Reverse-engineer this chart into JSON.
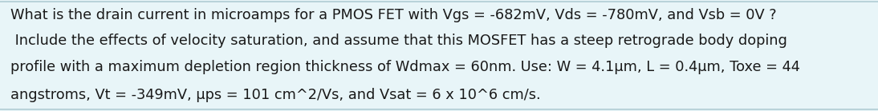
{
  "lines": [
    "What is the drain current in microamps for a PMOS FET with Vgs = -682mV, Vds = -780mV, and Vsb = 0V ?",
    " Include the effects of velocity saturation, and assume that this MOSFET has a steep retrograde body doping",
    "profile with a maximum depletion region thickness of Wdmax = 60nm. Use: W = 4.1μm, L = 0.4μm, Toxe = 44",
    "angstroms, Vt = -349mV, μps = 101 cm^2/Vs, and Vsat = 6 x 10^6 cm/s."
  ],
  "background_color": "#e8f5f8",
  "border_color": "#b0ccd4",
  "text_color": "#1a1a1a",
  "font_size": 12.8,
  "fig_width": 10.94,
  "fig_height": 1.39,
  "dpi": 100
}
